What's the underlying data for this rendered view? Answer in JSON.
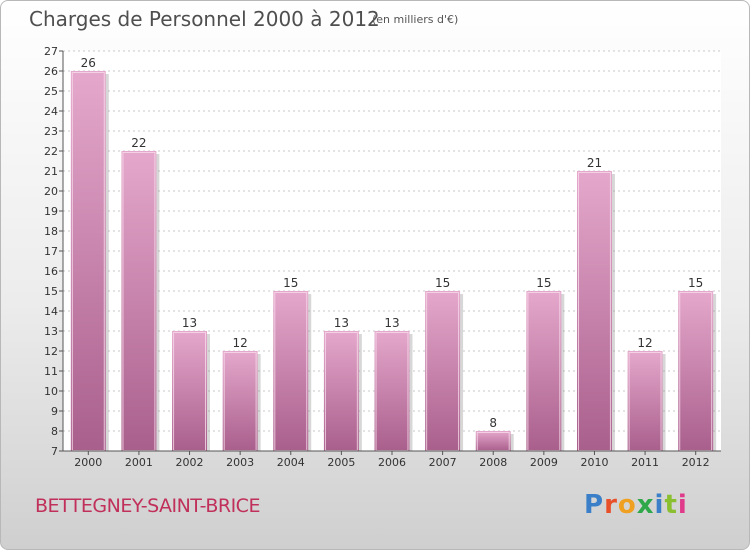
{
  "header": {
    "title": "Charges de Personnel 2000 à 2012",
    "subtitle": "(en milliers d'€)"
  },
  "footer": {
    "town": "BETTEGNEY-SAINT-BRICE",
    "logo": "Proxiti",
    "logo_colors": [
      "#3a7fc8",
      "#e8502a",
      "#f0a020",
      "#2fa84a",
      "#3a7fc8",
      "#8ac030",
      "#e03a8a"
    ]
  },
  "colors": {
    "bar_top": "#e5a8cc",
    "bar_bottom": "#a95f8c",
    "plot_background": "#ffffff",
    "grid": "#c8c8c8"
  },
  "chart_data": {
    "type": "bar",
    "title": "Charges de Personnel 2000 à 2012",
    "subtitle": "(en milliers d'€)",
    "categories": [
      "2000",
      "2001",
      "2002",
      "2003",
      "2004",
      "2005",
      "2006",
      "2007",
      "2008",
      "2009",
      "2010",
      "2011",
      "2012"
    ],
    "values": [
      26,
      22,
      13,
      12,
      15,
      13,
      13,
      15,
      8,
      15,
      21,
      12,
      15
    ],
    "ylim": [
      7,
      27
    ],
    "yticks": [
      7,
      8,
      9,
      10,
      11,
      12,
      13,
      14,
      15,
      16,
      17,
      18,
      19,
      20,
      21,
      22,
      23,
      24,
      25,
      26,
      27
    ],
    "grid": true,
    "data_labels": true
  }
}
